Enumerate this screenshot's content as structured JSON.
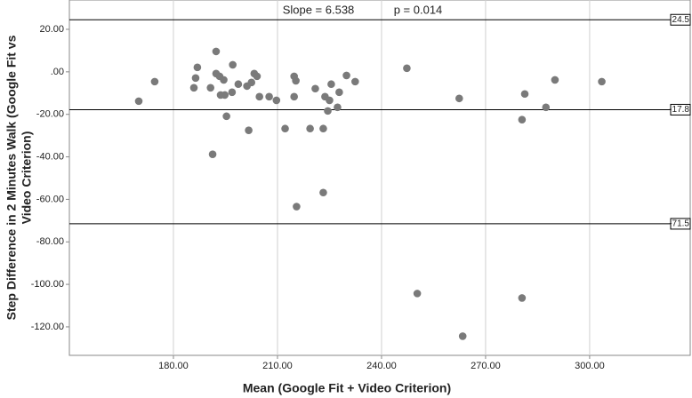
{
  "chart_data": {
    "type": "scatter",
    "annotations": [
      "Slope = 6.538",
      "p = 0.014"
    ],
    "x_label": "Mean (Google Fit + Video Criterion)",
    "y_label_lines": [
      "Step Difference in 2 Minutes Walk (Google Fit vs",
      "Video Criterion)"
    ],
    "xlim": [
      150,
      329
    ],
    "ylim": [
      -133.4,
      33.8
    ],
    "xticks": [
      {
        "value": 180,
        "label": "180.00"
      },
      {
        "value": 210,
        "label": "210.00"
      },
      {
        "value": 240,
        "label": "240.00"
      },
      {
        "value": 270,
        "label": "270.00"
      },
      {
        "value": 300,
        "label": "300.00"
      }
    ],
    "yticks": [
      {
        "value": 20,
        "label": "20.00"
      },
      {
        "value": 0,
        "label": ".00"
      },
      {
        "value": -20,
        "label": "-20.00"
      },
      {
        "value": -40,
        "label": "-40.00"
      },
      {
        "value": -60,
        "label": "-60.00"
      },
      {
        "value": -80,
        "label": "-80.00"
      },
      {
        "value": -100,
        "label": "-100.00"
      },
      {
        "value": -120,
        "label": "-120.00"
      }
    ],
    "grid": true,
    "reference_lines": [
      24.5,
      -17.8,
      -71.5
    ],
    "color": "#7a7a7a",
    "x": [
      170.0,
      174.6,
      185.9,
      186.4,
      186.9,
      192.3,
      190.7,
      191.3,
      192.3,
      193.3,
      193.6,
      194.8,
      194.5,
      195.3,
      196.9,
      197.1,
      198.7,
      201.2,
      201.7,
      202.5,
      203.3,
      204.1,
      204.8,
      207.6,
      209.7,
      212.2,
      214.8,
      214.8,
      215.3,
      215.5,
      219.4,
      220.9,
      223.2,
      223.2,
      223.7,
      224.5,
      225.0,
      225.5,
      227.3,
      227.8,
      229.9,
      232.4,
      247.3,
      250.3,
      262.4,
      263.4,
      280.5,
      281.3,
      280.5,
      287.4,
      290.0,
      303.5
    ],
    "y": [
      -13.8,
      -4.6,
      -7.5,
      -2.9,
      2.1,
      9.6,
      -7.5,
      -38.8,
      -0.8,
      -2.1,
      -10.9,
      -10.9,
      -3.8,
      -20.9,
      -9.6,
      3.3,
      -5.8,
      -6.7,
      -27.5,
      -5.0,
      -0.8,
      -2.1,
      -11.7,
      -11.7,
      -13.4,
      -26.7,
      -11.7,
      -2.1,
      -4.2,
      -63.4,
      -26.7,
      -7.9,
      -26.7,
      -56.8,
      -11.7,
      -18.4,
      -13.4,
      -5.8,
      -16.7,
      -9.6,
      -1.7,
      -4.6,
      1.7,
      -104.3,
      -12.5,
      -124.4,
      -22.5,
      -10.4,
      -106.4,
      -16.7,
      -3.8,
      -4.6
    ]
  }
}
